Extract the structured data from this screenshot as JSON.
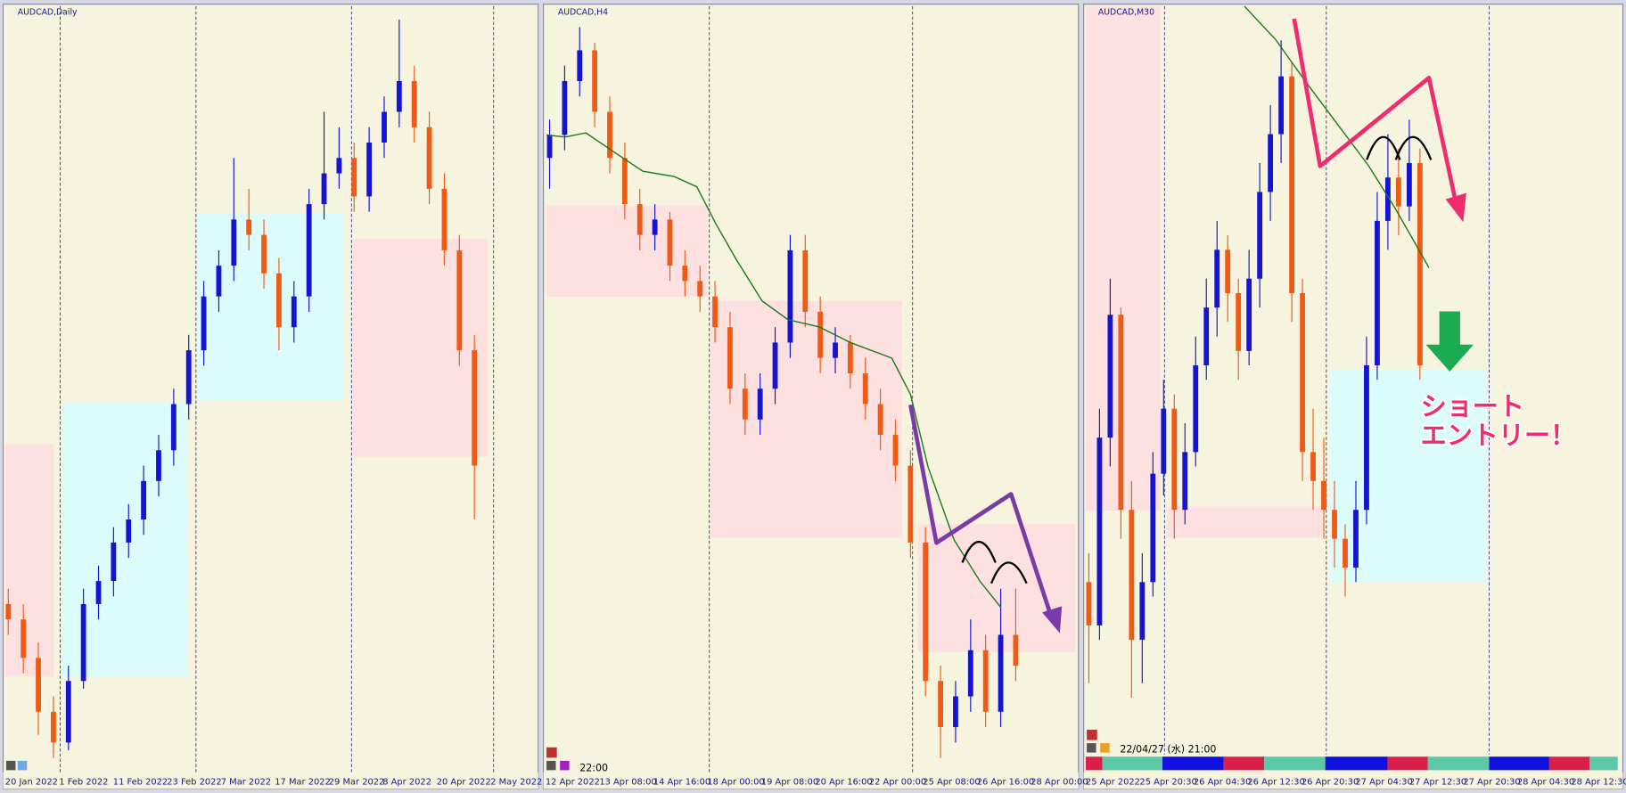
{
  "panels": [
    {
      "title": "AUDCAD,Daily",
      "time_labels": [
        "20 Jan 2022",
        "1 Feb 2022",
        "11 Feb 2022",
        "23 Feb 2022",
        "7 Mar 2022",
        "17 Mar 2022",
        "29 Mar 2022",
        "8 Apr 2022",
        "20 Apr 2022",
        "2 May 2022"
      ],
      "candles": [
        [
          22,
          24,
          18,
          20
        ],
        [
          20,
          22,
          13,
          15
        ],
        [
          15,
          17,
          5,
          8
        ],
        [
          8,
          10,
          2,
          4
        ],
        [
          4,
          14,
          3,
          12
        ],
        [
          12,
          24,
          11,
          22
        ],
        [
          22,
          27,
          20,
          25
        ],
        [
          25,
          32,
          23,
          30
        ],
        [
          30,
          35,
          28,
          33
        ],
        [
          33,
          40,
          31,
          38
        ],
        [
          38,
          44,
          36,
          42
        ],
        [
          42,
          50,
          40,
          48
        ],
        [
          48,
          57,
          46,
          55
        ],
        [
          55,
          64,
          53,
          62
        ],
        [
          62,
          68,
          60,
          66
        ],
        [
          66,
          80,
          64,
          72
        ],
        [
          72,
          76,
          68,
          70
        ],
        [
          70,
          72,
          63,
          65
        ],
        [
          65,
          67,
          55,
          58
        ],
        [
          58,
          64,
          56,
          62
        ],
        [
          62,
          76,
          60,
          74
        ],
        [
          74,
          86,
          72,
          78
        ],
        [
          78,
          84,
          76,
          80
        ],
        [
          80,
          82,
          73,
          75
        ],
        [
          75,
          84,
          73,
          82
        ],
        [
          82,
          88,
          80,
          86
        ],
        [
          86,
          98,
          84,
          90
        ],
        [
          90,
          92,
          82,
          84
        ],
        [
          84,
          86,
          74,
          76
        ],
        [
          76,
          78,
          66,
          68
        ],
        [
          68,
          70,
          53,
          55
        ],
        [
          55,
          57,
          33,
          40
        ]
      ]
    },
    {
      "title": "AUDCAD,H4",
      "clock": "22:00",
      "time_labels": [
        "12 Apr 2022",
        "13 Apr 08:00",
        "14 Apr 16:00",
        "18 Apr 00:00",
        "19 Apr 08:00",
        "20 Apr 16:00",
        "22 Apr 00:00",
        "25 Apr 08:00",
        "26 Apr 16:00",
        "28 Apr 00:00"
      ],
      "candles": [
        [
          80,
          85,
          76,
          83
        ],
        [
          83,
          92,
          81,
          90
        ],
        [
          90,
          97,
          88,
          94
        ],
        [
          94,
          95,
          84,
          86
        ],
        [
          86,
          88,
          78,
          80
        ],
        [
          80,
          82,
          72,
          74
        ],
        [
          74,
          76,
          68,
          70
        ],
        [
          70,
          74,
          68,
          72
        ],
        [
          72,
          73,
          64,
          66
        ],
        [
          66,
          68,
          62,
          64
        ],
        [
          64,
          66,
          60,
          62
        ],
        [
          62,
          64,
          56,
          58
        ],
        [
          58,
          60,
          48,
          50
        ],
        [
          50,
          52,
          44,
          46
        ],
        [
          46,
          52,
          44,
          50
        ],
        [
          50,
          58,
          48,
          56
        ],
        [
          56,
          70,
          54,
          68
        ],
        [
          68,
          70,
          58,
          60
        ],
        [
          60,
          62,
          52,
          54
        ],
        [
          54,
          58,
          52,
          56
        ],
        [
          56,
          57,
          50,
          52
        ],
        [
          52,
          54,
          46,
          48
        ],
        [
          48,
          50,
          42,
          44
        ],
        [
          44,
          46,
          38,
          40
        ],
        [
          40,
          42,
          28,
          30
        ],
        [
          30,
          32,
          10,
          12
        ],
        [
          12,
          14,
          2,
          6
        ],
        [
          6,
          12,
          4,
          10
        ],
        [
          10,
          20,
          8,
          16
        ],
        [
          16,
          18,
          6,
          8
        ],
        [
          8,
          24,
          6,
          18
        ],
        [
          18,
          24,
          12,
          14
        ]
      ]
    },
    {
      "title": "AUDCAD,M30",
      "clock": "22/04/27 (水) 21:00",
      "time_labels": [
        "25 Apr 2022",
        "25 Apr 20:30",
        "26 Apr 04:30",
        "26 Apr 12:30",
        "26 Apr 20:30",
        "27 Apr 04:30",
        "27 Apr 12:30",
        "27 Apr 20:30",
        "28 Apr 04:30",
        "28 Apr 12:30"
      ],
      "candles": [
        [
          20,
          24,
          6,
          14
        ],
        [
          14,
          44,
          12,
          40
        ],
        [
          40,
          62,
          36,
          57
        ],
        [
          57,
          58,
          26,
          30
        ],
        [
          30,
          34,
          4,
          12
        ],
        [
          12,
          24,
          6,
          20
        ],
        [
          20,
          38,
          18,
          35
        ],
        [
          35,
          48,
          32,
          44
        ],
        [
          44,
          46,
          26,
          30
        ],
        [
          30,
          42,
          28,
          38
        ],
        [
          38,
          54,
          36,
          50
        ],
        [
          50,
          62,
          48,
          58
        ],
        [
          58,
          70,
          54,
          66
        ],
        [
          66,
          68,
          56,
          60
        ],
        [
          60,
          62,
          48,
          52
        ],
        [
          52,
          66,
          50,
          62
        ],
        [
          62,
          78,
          58,
          74
        ],
        [
          74,
          86,
          70,
          82
        ],
        [
          82,
          95,
          78,
          90
        ],
        [
          90,
          92,
          56,
          60
        ],
        [
          60,
          62,
          34,
          38
        ],
        [
          38,
          44,
          30,
          34
        ],
        [
          34,
          40,
          26,
          30
        ],
        [
          30,
          34,
          22,
          26
        ],
        [
          26,
          28,
          18,
          22
        ],
        [
          22,
          34,
          20,
          30
        ],
        [
          30,
          54,
          28,
          50
        ],
        [
          50,
          74,
          48,
          70
        ],
        [
          70,
          82,
          66,
          76
        ],
        [
          76,
          80,
          68,
          72
        ],
        [
          72,
          84,
          70,
          78
        ],
        [
          78,
          80,
          48,
          50
        ]
      ],
      "annotation": [
        "ショート",
        "エントリー！"
      ]
    }
  ]
}
